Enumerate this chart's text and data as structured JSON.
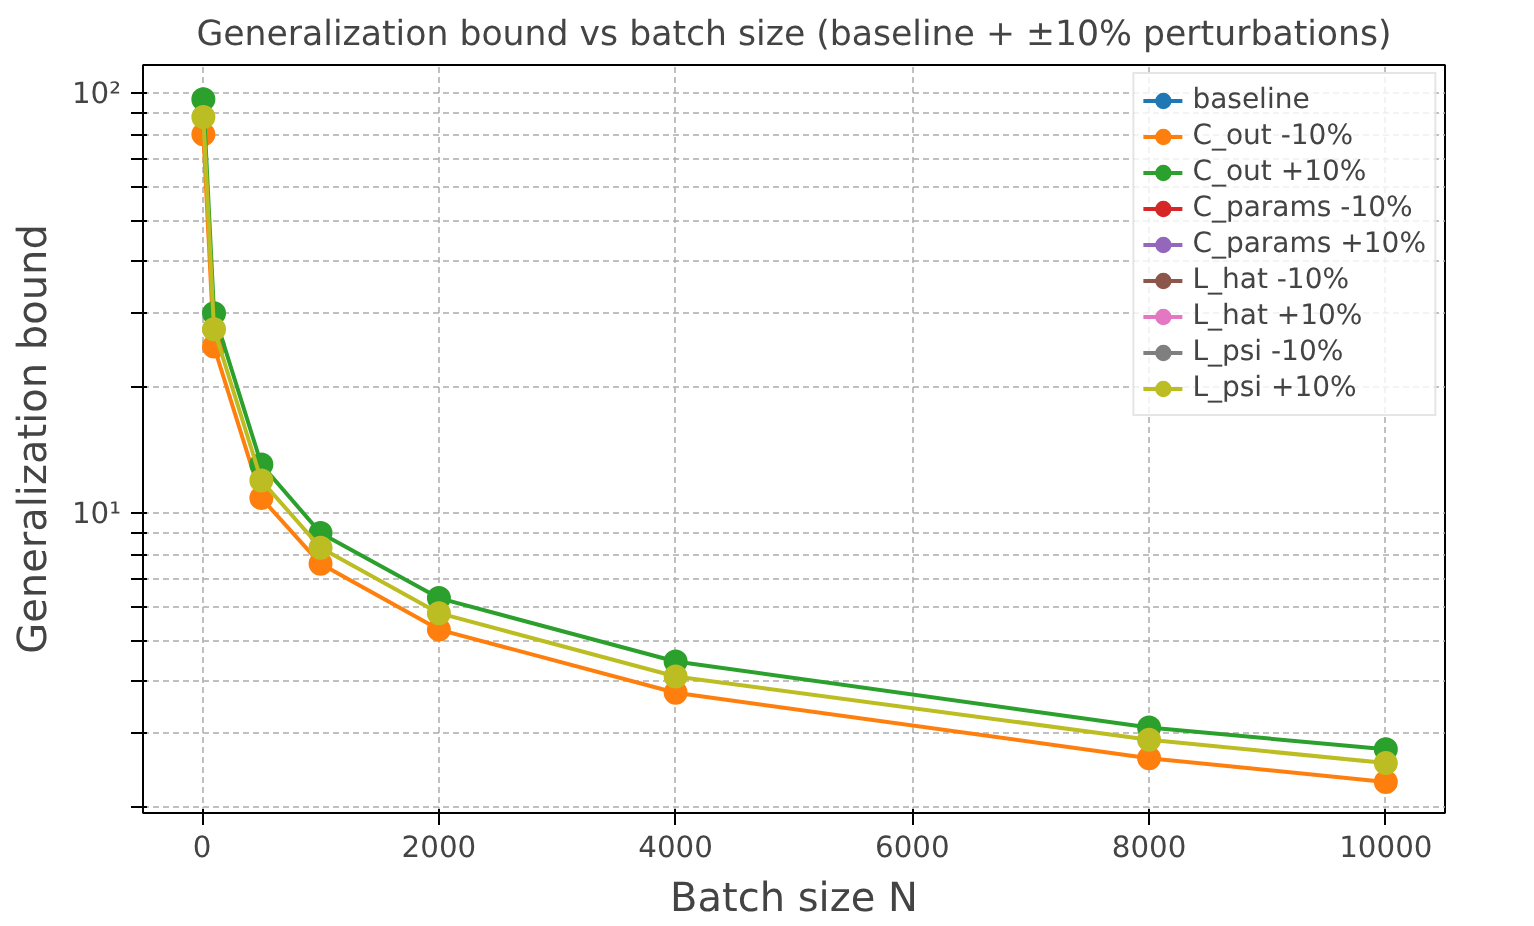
{
  "chart_data": {
    "type": "line",
    "title": "Generalization bound vs batch size (baseline + ±10% perturbations)",
    "xlabel": "Batch size N",
    "ylabel": "Generalization bound",
    "x": [
      10,
      100,
      500,
      1000,
      2000,
      4000,
      8000,
      10000
    ],
    "series": [
      {
        "name": "baseline",
        "color": "#1f77b4",
        "values": [
          null,
          null,
          null,
          null,
          null,
          null,
          null,
          null
        ]
      },
      {
        "name": "C_out -10%",
        "color": "#ff7f0e",
        "values": [
          80,
          25,
          10.9,
          7.6,
          5.3,
          3.75,
          2.62,
          2.3
        ]
      },
      {
        "name": "C_out +10%",
        "color": "#2ca02c",
        "values": [
          97,
          30,
          13.1,
          9,
          6.3,
          4.45,
          3.1,
          2.75
        ]
      },
      {
        "name": "C_params -10%",
        "color": "#d62728",
        "values": [
          null,
          null,
          null,
          null,
          null,
          null,
          null,
          null
        ]
      },
      {
        "name": "C_params +10%",
        "color": "#9467bd",
        "values": [
          null,
          null,
          null,
          null,
          null,
          null,
          null,
          null
        ]
      },
      {
        "name": "L_hat -10%",
        "color": "#8c564b",
        "values": [
          null,
          null,
          null,
          null,
          null,
          null,
          null,
          null
        ]
      },
      {
        "name": "L_hat +10%",
        "color": "#e377c2",
        "values": [
          null,
          null,
          null,
          null,
          null,
          null,
          null,
          null
        ]
      },
      {
        "name": "L_psi -10%",
        "color": "#7f7f7f",
        "values": [
          null,
          null,
          null,
          null,
          null,
          null,
          null,
          null
        ]
      },
      {
        "name": "L_psi +10%",
        "color": "#bcbd22",
        "values": [
          88,
          27.5,
          12,
          8.3,
          5.8,
          4.1,
          2.9,
          2.55
        ]
      }
    ],
    "xlim": [
      -500,
      10500
    ],
    "ylim": [
      1.94,
      117
    ],
    "log": "y",
    "xticks": [
      0,
      2000,
      4000,
      6000,
      8000,
      10000
    ],
    "yticks": [
      {
        "value": 2,
        "label": null
      },
      {
        "value": 3,
        "label": null
      },
      {
        "value": 4,
        "label": null
      },
      {
        "value": 5,
        "label": null
      },
      {
        "value": 6,
        "label": null
      },
      {
        "value": 7,
        "label": null
      },
      {
        "value": 8,
        "label": null
      },
      {
        "value": 9,
        "label": null
      },
      {
        "value": 10,
        "label": "10¹"
      },
      {
        "value": 20,
        "label": null
      },
      {
        "value": 30,
        "label": null
      },
      {
        "value": 40,
        "label": null
      },
      {
        "value": 50,
        "label": null
      },
      {
        "value": 60,
        "label": null
      },
      {
        "value": 70,
        "label": null
      },
      {
        "value": 80,
        "label": null
      },
      {
        "value": 90,
        "label": null
      },
      {
        "value": 100,
        "label": "10²"
      }
    ],
    "grid": true,
    "legend": "top right",
    "marker": "circle",
    "line_style": "solid"
  }
}
